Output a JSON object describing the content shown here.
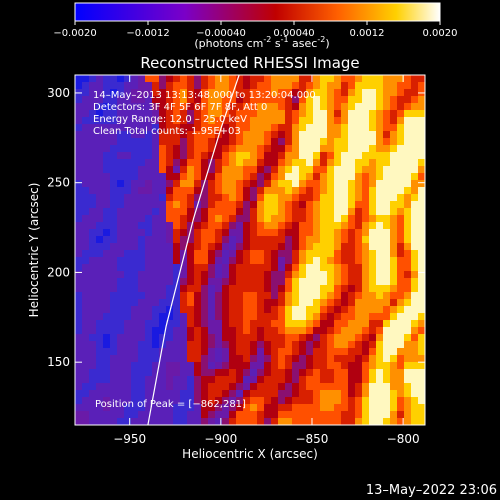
{
  "chart_data": {
    "type": "heatmap",
    "title": "Reconstructed RHESSI Image",
    "colorbar": {
      "min": -0.002,
      "max": 0.002,
      "ticks": [
        "-0.0020",
        "-0.0012",
        "-0.00040",
        "0.00040",
        "0.0012",
        "0.0020"
      ],
      "unit_label": "(photons cm",
      "unit_sup1": "-2",
      "unit_mid": " s",
      "unit_sup2": "-1",
      "unit_mid2": " asec",
      "unit_sup3": "-2",
      "unit_end": ")",
      "colors": [
        "#0000ff",
        "#7a00c8",
        "#c00000",
        "#ff6000",
        "#ffd000",
        "#ffffff"
      ]
    },
    "xlabel": "Heliocentric X (arcsec)",
    "ylabel": "Heliocentric Y (arcsec)",
    "xlim": [
      -980,
      -788
    ],
    "ylim": [
      115,
      310
    ],
    "x_ticks": [
      -950,
      -900,
      -850,
      -800
    ],
    "x_tick_labels": [
      "−950",
      "−900",
      "−850",
      "−800"
    ],
    "y_ticks": [
      150,
      200,
      250,
      300
    ],
    "y_tick_labels": [
      "150",
      "200",
      "250",
      "300"
    ],
    "annotations": {
      "time_range": "14–May–2013 13:13:48.000 to 13:20:04.000",
      "detectors": "Detectors: 3F 4F 5F 6F 7F 8F, Att 0",
      "energy": "Energy Range: 12.0 – 25.0 keV",
      "clean": "Clean     Total counts: 1.95E+03",
      "peak": "Position of Peak = [−862,281]"
    },
    "limb_arc": [
      [
        -940,
        115
      ],
      [
        -930,
        170
      ],
      [
        -915,
        230
      ],
      [
        -900,
        280
      ],
      [
        -890,
        310
      ]
    ],
    "legend": "none",
    "grid": false
  },
  "footer": {
    "timestamp": "13–May–2022 23:06"
  }
}
